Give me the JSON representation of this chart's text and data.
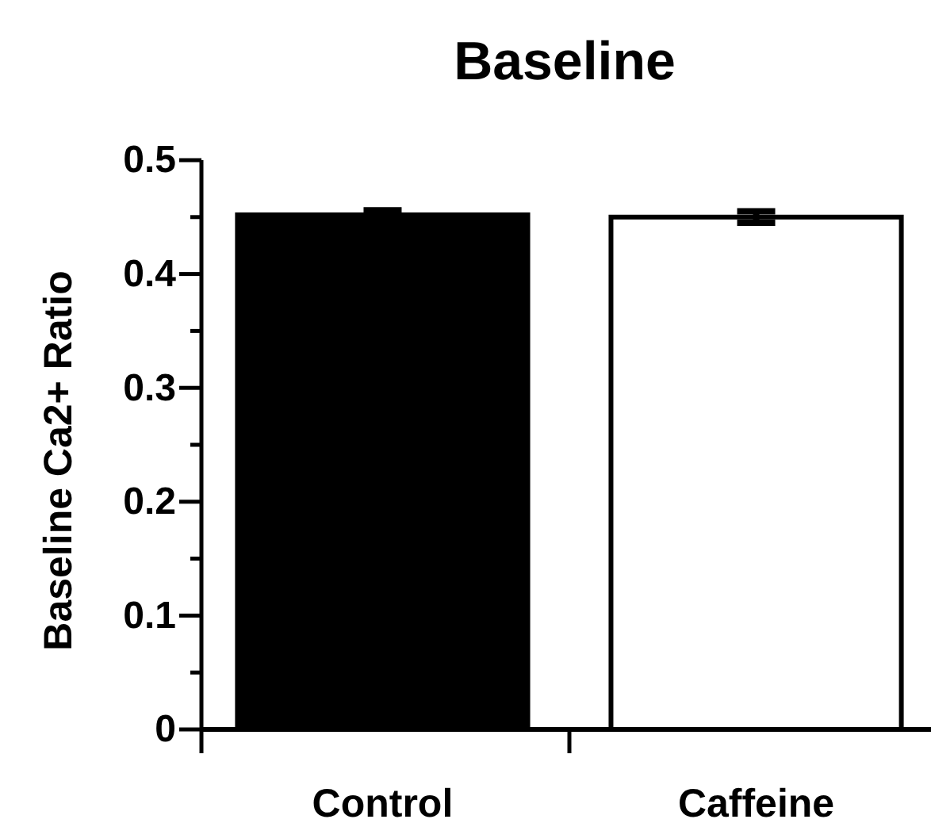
{
  "chart_data": {
    "type": "bar",
    "title": "Baseline",
    "ylabel": "Baseline Ca2+ Ratio",
    "categories": [
      "Control",
      "Caffeine"
    ],
    "values": [
      0.452,
      0.45
    ],
    "errors": [
      0.004,
      0.005
    ],
    "colors": [
      "#000000",
      "#ffffff"
    ],
    "ylim": [
      0,
      0.5
    ],
    "yticks": [
      0,
      {
        "value": 0.05,
        "label": null
      },
      0.1,
      {
        "value": 0.15,
        "label": null
      },
      0.2,
      {
        "value": 0.25,
        "label": null
      },
      0.3,
      {
        "value": 0.35,
        "label": null
      },
      0.4,
      {
        "value": 0.45,
        "label": null
      },
      0.5
    ],
    "grid": false
  }
}
